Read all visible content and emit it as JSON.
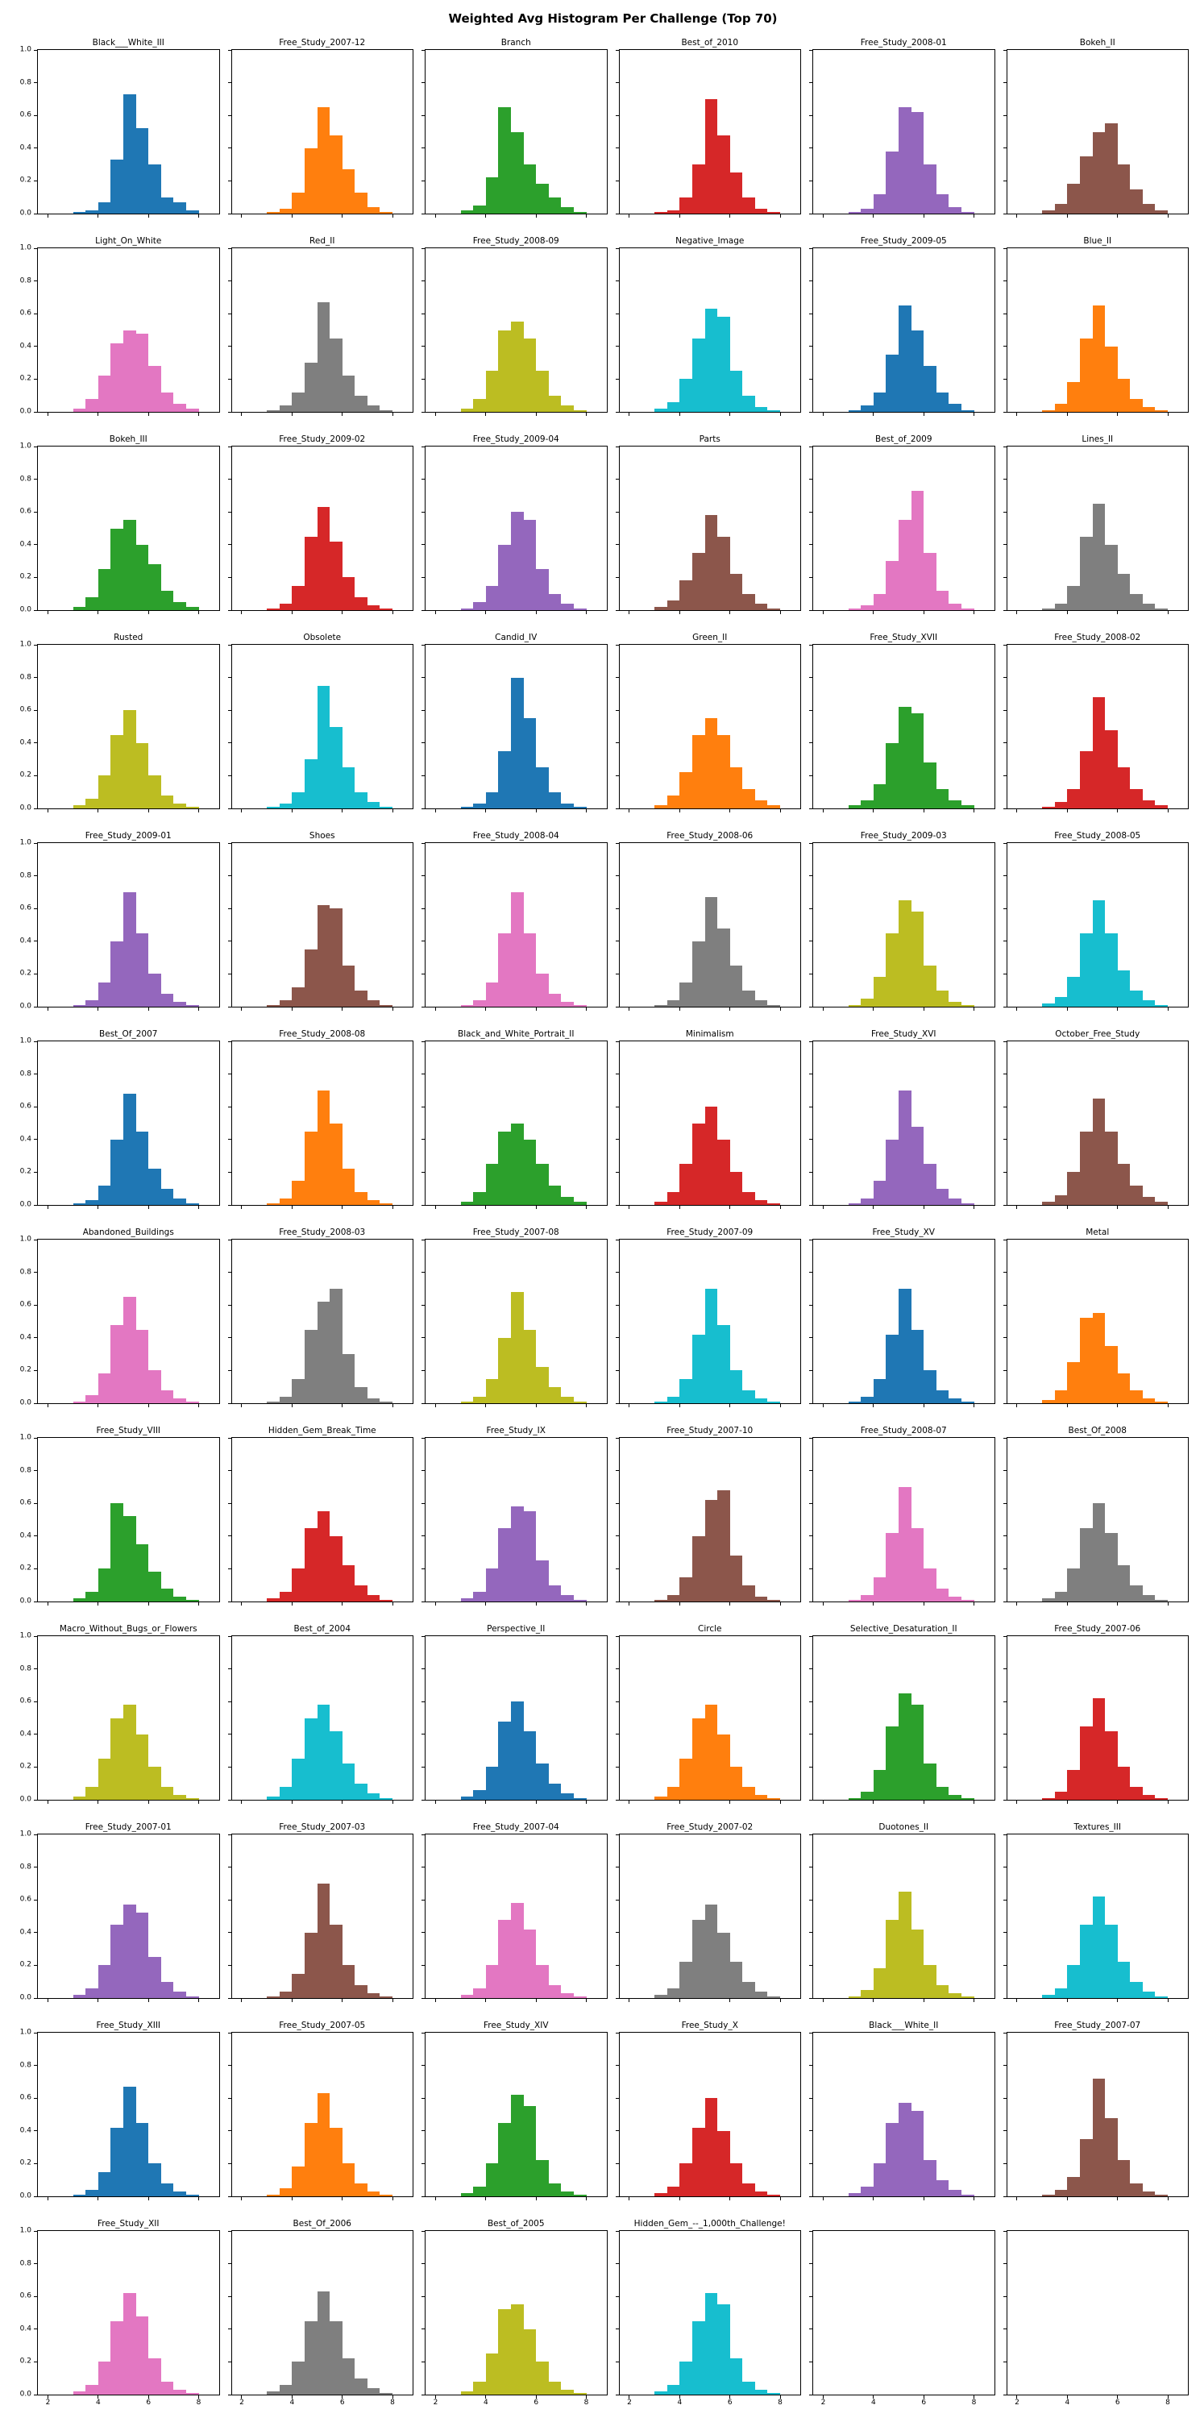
{
  "figure": {
    "title": "Weighted Avg Histogram Per Challenge (Top 70)",
    "background": "#ffffff"
  },
  "chart_data": {
    "type": "bar",
    "title": "Weighted Avg Histogram Per Challenge (Top 70)",
    "layout": {
      "rows": 12,
      "cols": 6,
      "grid_lines": false,
      "legend": "none"
    },
    "xlim": [
      1.6,
      8.8
    ],
    "ylim": [
      0,
      1.0
    ],
    "x_tick_values": [
      2,
      4,
      6,
      8
    ],
    "x_tick_labels": [
      "2",
      "4",
      "6",
      "8"
    ],
    "y_tick_values": [
      0.0,
      0.2,
      0.4,
      0.6,
      0.8,
      1.0
    ],
    "y_tick_labels": [
      "0.0",
      "0.2",
      "0.4",
      "0.6",
      "0.8",
      "1.0"
    ],
    "bin_start": 3.0,
    "bin_width": 0.5,
    "empty_cells": 2,
    "palette": [
      "#1f77b4",
      "#ff7f0e",
      "#2ca02c",
      "#d62728",
      "#9467bd",
      "#8c564b",
      "#e377c2",
      "#7f7f7f",
      "#bcbd22",
      "#17becf"
    ],
    "subplots": [
      {
        "title": "Black___White_III",
        "color": "#1f77b4",
        "values": [
          0.01,
          0.02,
          0.07,
          0.33,
          0.73,
          0.52,
          0.3,
          0.1,
          0.07,
          0.02
        ]
      },
      {
        "title": "Free_Study_2007-12",
        "color": "#ff7f0e",
        "values": [
          0.01,
          0.03,
          0.13,
          0.4,
          0.65,
          0.48,
          0.27,
          0.13,
          0.04,
          0.01
        ]
      },
      {
        "title": "Branch",
        "color": "#2ca02c",
        "values": [
          0.02,
          0.05,
          0.22,
          0.65,
          0.5,
          0.3,
          0.18,
          0.1,
          0.04,
          0.01
        ]
      },
      {
        "title": "Best_of_2010",
        "color": "#d62728",
        "values": [
          0.01,
          0.02,
          0.1,
          0.3,
          0.7,
          0.48,
          0.25,
          0.1,
          0.03,
          0.01
        ]
      },
      {
        "title": "Free_Study_2008-01",
        "color": "#9467bd",
        "values": [
          0.01,
          0.03,
          0.12,
          0.38,
          0.65,
          0.62,
          0.3,
          0.12,
          0.04,
          0.01
        ]
      },
      {
        "title": "Bokeh_II",
        "color": "#8c564b",
        "values": [
          0.02,
          0.06,
          0.18,
          0.35,
          0.5,
          0.55,
          0.3,
          0.15,
          0.06,
          0.02
        ]
      },
      {
        "title": "Light_On_White",
        "color": "#e377c2",
        "values": [
          0.02,
          0.08,
          0.22,
          0.42,
          0.5,
          0.48,
          0.28,
          0.12,
          0.05,
          0.02
        ]
      },
      {
        "title": "Red_II",
        "color": "#7f7f7f",
        "values": [
          0.01,
          0.04,
          0.12,
          0.3,
          0.67,
          0.45,
          0.22,
          0.1,
          0.04,
          0.01
        ]
      },
      {
        "title": "Free_Study_2008-09",
        "color": "#bcbd22",
        "values": [
          0.02,
          0.08,
          0.25,
          0.5,
          0.55,
          0.45,
          0.25,
          0.1,
          0.04,
          0.01
        ]
      },
      {
        "title": "Negative_Image",
        "color": "#17becf",
        "values": [
          0.02,
          0.06,
          0.2,
          0.45,
          0.63,
          0.58,
          0.25,
          0.1,
          0.03,
          0.01
        ]
      },
      {
        "title": "Free_Study_2009-05",
        "color": "#1f77b4",
        "values": [
          0.01,
          0.04,
          0.12,
          0.35,
          0.65,
          0.5,
          0.28,
          0.12,
          0.05,
          0.01
        ]
      },
      {
        "title": "Blue_II",
        "color": "#ff7f0e",
        "values": [
          0.01,
          0.05,
          0.18,
          0.45,
          0.65,
          0.4,
          0.2,
          0.08,
          0.03,
          0.01
        ]
      },
      {
        "title": "Bokeh_III",
        "color": "#2ca02c",
        "values": [
          0.02,
          0.08,
          0.25,
          0.5,
          0.55,
          0.4,
          0.28,
          0.12,
          0.05,
          0.02
        ]
      },
      {
        "title": "Free_Study_2009-02",
        "color": "#d62728",
        "values": [
          0.01,
          0.04,
          0.15,
          0.45,
          0.63,
          0.42,
          0.2,
          0.08,
          0.03,
          0.01
        ]
      },
      {
        "title": "Free_Study_2009-04",
        "color": "#9467bd",
        "values": [
          0.01,
          0.05,
          0.15,
          0.4,
          0.6,
          0.55,
          0.25,
          0.1,
          0.04,
          0.01
        ]
      },
      {
        "title": "Parts",
        "color": "#8c564b",
        "values": [
          0.02,
          0.06,
          0.18,
          0.35,
          0.58,
          0.45,
          0.22,
          0.1,
          0.04,
          0.01
        ]
      },
      {
        "title": "Best_of_2009",
        "color": "#e377c2",
        "values": [
          0.01,
          0.03,
          0.1,
          0.3,
          0.55,
          0.73,
          0.35,
          0.12,
          0.04,
          0.01
        ]
      },
      {
        "title": "Lines_II",
        "color": "#7f7f7f",
        "values": [
          0.01,
          0.04,
          0.15,
          0.45,
          0.65,
          0.4,
          0.22,
          0.1,
          0.04,
          0.01
        ]
      },
      {
        "title": "Rusted",
        "color": "#bcbd22",
        "values": [
          0.02,
          0.06,
          0.2,
          0.45,
          0.6,
          0.4,
          0.2,
          0.08,
          0.03,
          0.01
        ]
      },
      {
        "title": "Obsolete",
        "color": "#17becf",
        "values": [
          0.01,
          0.03,
          0.1,
          0.3,
          0.75,
          0.5,
          0.25,
          0.1,
          0.04,
          0.01
        ]
      },
      {
        "title": "Candid_IV",
        "color": "#1f77b4",
        "values": [
          0.01,
          0.03,
          0.1,
          0.35,
          0.8,
          0.55,
          0.25,
          0.1,
          0.03,
          0.01
        ]
      },
      {
        "title": "Green_II",
        "color": "#ff7f0e",
        "values": [
          0.02,
          0.08,
          0.22,
          0.45,
          0.55,
          0.45,
          0.25,
          0.12,
          0.05,
          0.02
        ]
      },
      {
        "title": "Free_Study_XVII",
        "color": "#2ca02c",
        "values": [
          0.02,
          0.05,
          0.15,
          0.4,
          0.62,
          0.58,
          0.28,
          0.12,
          0.05,
          0.02
        ]
      },
      {
        "title": "Free_Study_2008-02",
        "color": "#d62728",
        "values": [
          0.01,
          0.04,
          0.12,
          0.35,
          0.68,
          0.48,
          0.25,
          0.12,
          0.05,
          0.02
        ]
      },
      {
        "title": "Free_Study_2009-01",
        "color": "#9467bd",
        "values": [
          0.01,
          0.04,
          0.15,
          0.4,
          0.7,
          0.45,
          0.2,
          0.08,
          0.03,
          0.01
        ]
      },
      {
        "title": "Shoes",
        "color": "#8c564b",
        "values": [
          0.01,
          0.04,
          0.12,
          0.35,
          0.62,
          0.6,
          0.25,
          0.1,
          0.04,
          0.01
        ]
      },
      {
        "title": "Free_Study_2008-04",
        "color": "#e377c2",
        "values": [
          0.01,
          0.04,
          0.15,
          0.45,
          0.7,
          0.45,
          0.2,
          0.08,
          0.03,
          0.01
        ]
      },
      {
        "title": "Free_Study_2008-06",
        "color": "#7f7f7f",
        "values": [
          0.01,
          0.04,
          0.15,
          0.4,
          0.67,
          0.48,
          0.25,
          0.1,
          0.04,
          0.01
        ]
      },
      {
        "title": "Free_Study_2009-03",
        "color": "#bcbd22",
        "values": [
          0.01,
          0.05,
          0.18,
          0.45,
          0.65,
          0.58,
          0.25,
          0.1,
          0.03,
          0.01
        ]
      },
      {
        "title": "Free_Study_2008-05",
        "color": "#17becf",
        "values": [
          0.02,
          0.06,
          0.18,
          0.45,
          0.65,
          0.45,
          0.22,
          0.1,
          0.04,
          0.01
        ]
      },
      {
        "title": "Best_Of_2007",
        "color": "#1f77b4",
        "values": [
          0.01,
          0.03,
          0.12,
          0.4,
          0.68,
          0.45,
          0.22,
          0.1,
          0.04,
          0.01
        ]
      },
      {
        "title": "Free_Study_2008-08",
        "color": "#ff7f0e",
        "values": [
          0.01,
          0.04,
          0.15,
          0.45,
          0.7,
          0.5,
          0.22,
          0.08,
          0.03,
          0.01
        ]
      },
      {
        "title": "Black_and_White_Portrait_II",
        "color": "#2ca02c",
        "values": [
          0.02,
          0.08,
          0.25,
          0.45,
          0.5,
          0.4,
          0.25,
          0.12,
          0.05,
          0.02
        ]
      },
      {
        "title": "Minimalism",
        "color": "#d62728",
        "values": [
          0.02,
          0.08,
          0.25,
          0.5,
          0.6,
          0.4,
          0.2,
          0.08,
          0.03,
          0.01
        ]
      },
      {
        "title": "Free_Study_XVI",
        "color": "#9467bd",
        "values": [
          0.01,
          0.04,
          0.15,
          0.4,
          0.7,
          0.48,
          0.25,
          0.1,
          0.04,
          0.01
        ]
      },
      {
        "title": "October_Free_Study",
        "color": "#8c564b",
        "values": [
          0.02,
          0.06,
          0.2,
          0.45,
          0.65,
          0.45,
          0.25,
          0.12,
          0.05,
          0.02
        ]
      },
      {
        "title": "Abandoned_Buildings",
        "color": "#e377c2",
        "values": [
          0.01,
          0.05,
          0.18,
          0.48,
          0.65,
          0.45,
          0.2,
          0.08,
          0.03,
          0.01
        ]
      },
      {
        "title": "Free_Study_2008-03",
        "color": "#7f7f7f",
        "values": [
          0.01,
          0.04,
          0.15,
          0.45,
          0.62,
          0.7,
          0.3,
          0.1,
          0.03,
          0.01
        ]
      },
      {
        "title": "Free_Study_2007-08",
        "color": "#bcbd22",
        "values": [
          0.01,
          0.04,
          0.15,
          0.4,
          0.68,
          0.45,
          0.22,
          0.1,
          0.04,
          0.01
        ]
      },
      {
        "title": "Free_Study_2007-09",
        "color": "#17becf",
        "values": [
          0.01,
          0.04,
          0.15,
          0.42,
          0.7,
          0.48,
          0.2,
          0.08,
          0.03,
          0.01
        ]
      },
      {
        "title": "Free_Study_XV",
        "color": "#1f77b4",
        "values": [
          0.01,
          0.04,
          0.15,
          0.42,
          0.7,
          0.45,
          0.2,
          0.08,
          0.03,
          0.01
        ]
      },
      {
        "title": "Metal",
        "color": "#ff7f0e",
        "values": [
          0.02,
          0.08,
          0.25,
          0.52,
          0.55,
          0.35,
          0.18,
          0.08,
          0.03,
          0.01
        ]
      },
      {
        "title": "Free_Study_VIII",
        "color": "#2ca02c",
        "values": [
          0.02,
          0.06,
          0.2,
          0.6,
          0.52,
          0.35,
          0.18,
          0.08,
          0.03,
          0.01
        ]
      },
      {
        "title": "Hidden_Gem_Break_Time",
        "color": "#d62728",
        "values": [
          0.02,
          0.06,
          0.2,
          0.45,
          0.55,
          0.4,
          0.22,
          0.1,
          0.04,
          0.01
        ]
      },
      {
        "title": "Free_Study_IX",
        "color": "#9467bd",
        "values": [
          0.02,
          0.06,
          0.2,
          0.45,
          0.58,
          0.55,
          0.25,
          0.1,
          0.04,
          0.01
        ]
      },
      {
        "title": "Free_Study_2007-10",
        "color": "#8c564b",
        "values": [
          0.01,
          0.04,
          0.15,
          0.4,
          0.62,
          0.68,
          0.28,
          0.1,
          0.03,
          0.01
        ]
      },
      {
        "title": "Free_Study_2008-07",
        "color": "#e377c2",
        "values": [
          0.01,
          0.04,
          0.15,
          0.42,
          0.7,
          0.45,
          0.2,
          0.08,
          0.03,
          0.01
        ]
      },
      {
        "title": "Best_Of_2008",
        "color": "#7f7f7f",
        "values": [
          0.02,
          0.06,
          0.2,
          0.45,
          0.6,
          0.42,
          0.22,
          0.1,
          0.04,
          0.01
        ]
      },
      {
        "title": "Macro_Without_Bugs_or_Flowers",
        "color": "#bcbd22",
        "values": [
          0.02,
          0.08,
          0.25,
          0.5,
          0.58,
          0.4,
          0.2,
          0.08,
          0.03,
          0.01
        ]
      },
      {
        "title": "Best_of_2004",
        "color": "#17becf",
        "values": [
          0.02,
          0.08,
          0.25,
          0.5,
          0.58,
          0.42,
          0.22,
          0.1,
          0.04,
          0.01
        ]
      },
      {
        "title": "Perspective_II",
        "color": "#1f77b4",
        "values": [
          0.02,
          0.06,
          0.2,
          0.48,
          0.6,
          0.42,
          0.22,
          0.1,
          0.04,
          0.01
        ]
      },
      {
        "title": "Circle",
        "color": "#ff7f0e",
        "values": [
          0.02,
          0.08,
          0.25,
          0.5,
          0.58,
          0.4,
          0.2,
          0.08,
          0.03,
          0.01
        ]
      },
      {
        "title": "Selective_Desaturation_II",
        "color": "#2ca02c",
        "values": [
          0.01,
          0.05,
          0.18,
          0.45,
          0.65,
          0.58,
          0.22,
          0.08,
          0.03,
          0.01
        ]
      },
      {
        "title": "Free_Study_2007-06",
        "color": "#d62728",
        "values": [
          0.01,
          0.05,
          0.18,
          0.45,
          0.62,
          0.42,
          0.2,
          0.08,
          0.03,
          0.01
        ]
      },
      {
        "title": "Free_Study_2007-01",
        "color": "#9467bd",
        "values": [
          0.02,
          0.06,
          0.2,
          0.45,
          0.57,
          0.52,
          0.25,
          0.1,
          0.04,
          0.01
        ]
      },
      {
        "title": "Free_Study_2007-03",
        "color": "#8c564b",
        "values": [
          0.01,
          0.04,
          0.15,
          0.4,
          0.7,
          0.45,
          0.2,
          0.08,
          0.03,
          0.01
        ]
      },
      {
        "title": "Free_Study_2007-04",
        "color": "#e377c2",
        "values": [
          0.02,
          0.06,
          0.2,
          0.48,
          0.58,
          0.42,
          0.2,
          0.08,
          0.03,
          0.01
        ]
      },
      {
        "title": "Free_Study_2007-02",
        "color": "#7f7f7f",
        "values": [
          0.02,
          0.06,
          0.22,
          0.48,
          0.57,
          0.4,
          0.22,
          0.1,
          0.04,
          0.01
        ]
      },
      {
        "title": "Duotones_II",
        "color": "#bcbd22",
        "values": [
          0.01,
          0.05,
          0.18,
          0.48,
          0.65,
          0.42,
          0.2,
          0.08,
          0.03,
          0.01
        ]
      },
      {
        "title": "Textures_III",
        "color": "#17becf",
        "values": [
          0.02,
          0.06,
          0.2,
          0.45,
          0.62,
          0.45,
          0.22,
          0.1,
          0.04,
          0.01
        ]
      },
      {
        "title": "Free_Study_XIII",
        "color": "#1f77b4",
        "values": [
          0.01,
          0.04,
          0.15,
          0.42,
          0.67,
          0.45,
          0.2,
          0.08,
          0.03,
          0.01
        ]
      },
      {
        "title": "Free_Study_2007-05",
        "color": "#ff7f0e",
        "values": [
          0.01,
          0.05,
          0.18,
          0.45,
          0.63,
          0.42,
          0.2,
          0.08,
          0.03,
          0.01
        ]
      },
      {
        "title": "Free_Study_XIV",
        "color": "#2ca02c",
        "values": [
          0.02,
          0.06,
          0.2,
          0.45,
          0.62,
          0.55,
          0.22,
          0.08,
          0.03,
          0.01
        ]
      },
      {
        "title": "Free_Study_X",
        "color": "#d62728",
        "values": [
          0.02,
          0.06,
          0.2,
          0.42,
          0.6,
          0.4,
          0.2,
          0.08,
          0.03,
          0.01
        ]
      },
      {
        "title": "Black___White_II",
        "color": "#9467bd",
        "values": [
          0.02,
          0.06,
          0.2,
          0.45,
          0.57,
          0.52,
          0.22,
          0.1,
          0.04,
          0.01
        ]
      },
      {
        "title": "Free_Study_2007-07",
        "color": "#8c564b",
        "values": [
          0.01,
          0.04,
          0.12,
          0.35,
          0.72,
          0.48,
          0.22,
          0.08,
          0.03,
          0.01
        ]
      },
      {
        "title": "Free_Study_XII",
        "color": "#e377c2",
        "values": [
          0.02,
          0.06,
          0.2,
          0.45,
          0.62,
          0.48,
          0.22,
          0.08,
          0.03,
          0.01
        ]
      },
      {
        "title": "Best_Of_2006",
        "color": "#7f7f7f",
        "values": [
          0.02,
          0.06,
          0.2,
          0.45,
          0.63,
          0.45,
          0.22,
          0.1,
          0.04,
          0.01
        ]
      },
      {
        "title": "Best_of_2005",
        "color": "#bcbd22",
        "values": [
          0.02,
          0.08,
          0.25,
          0.52,
          0.55,
          0.4,
          0.2,
          0.08,
          0.03,
          0.01
        ]
      },
      {
        "title": "Hidden_Gem_--_1,000th_Challenge!",
        "color": "#17becf",
        "values": [
          0.02,
          0.06,
          0.2,
          0.45,
          0.62,
          0.55,
          0.22,
          0.08,
          0.03,
          0.01
        ]
      }
    ]
  }
}
